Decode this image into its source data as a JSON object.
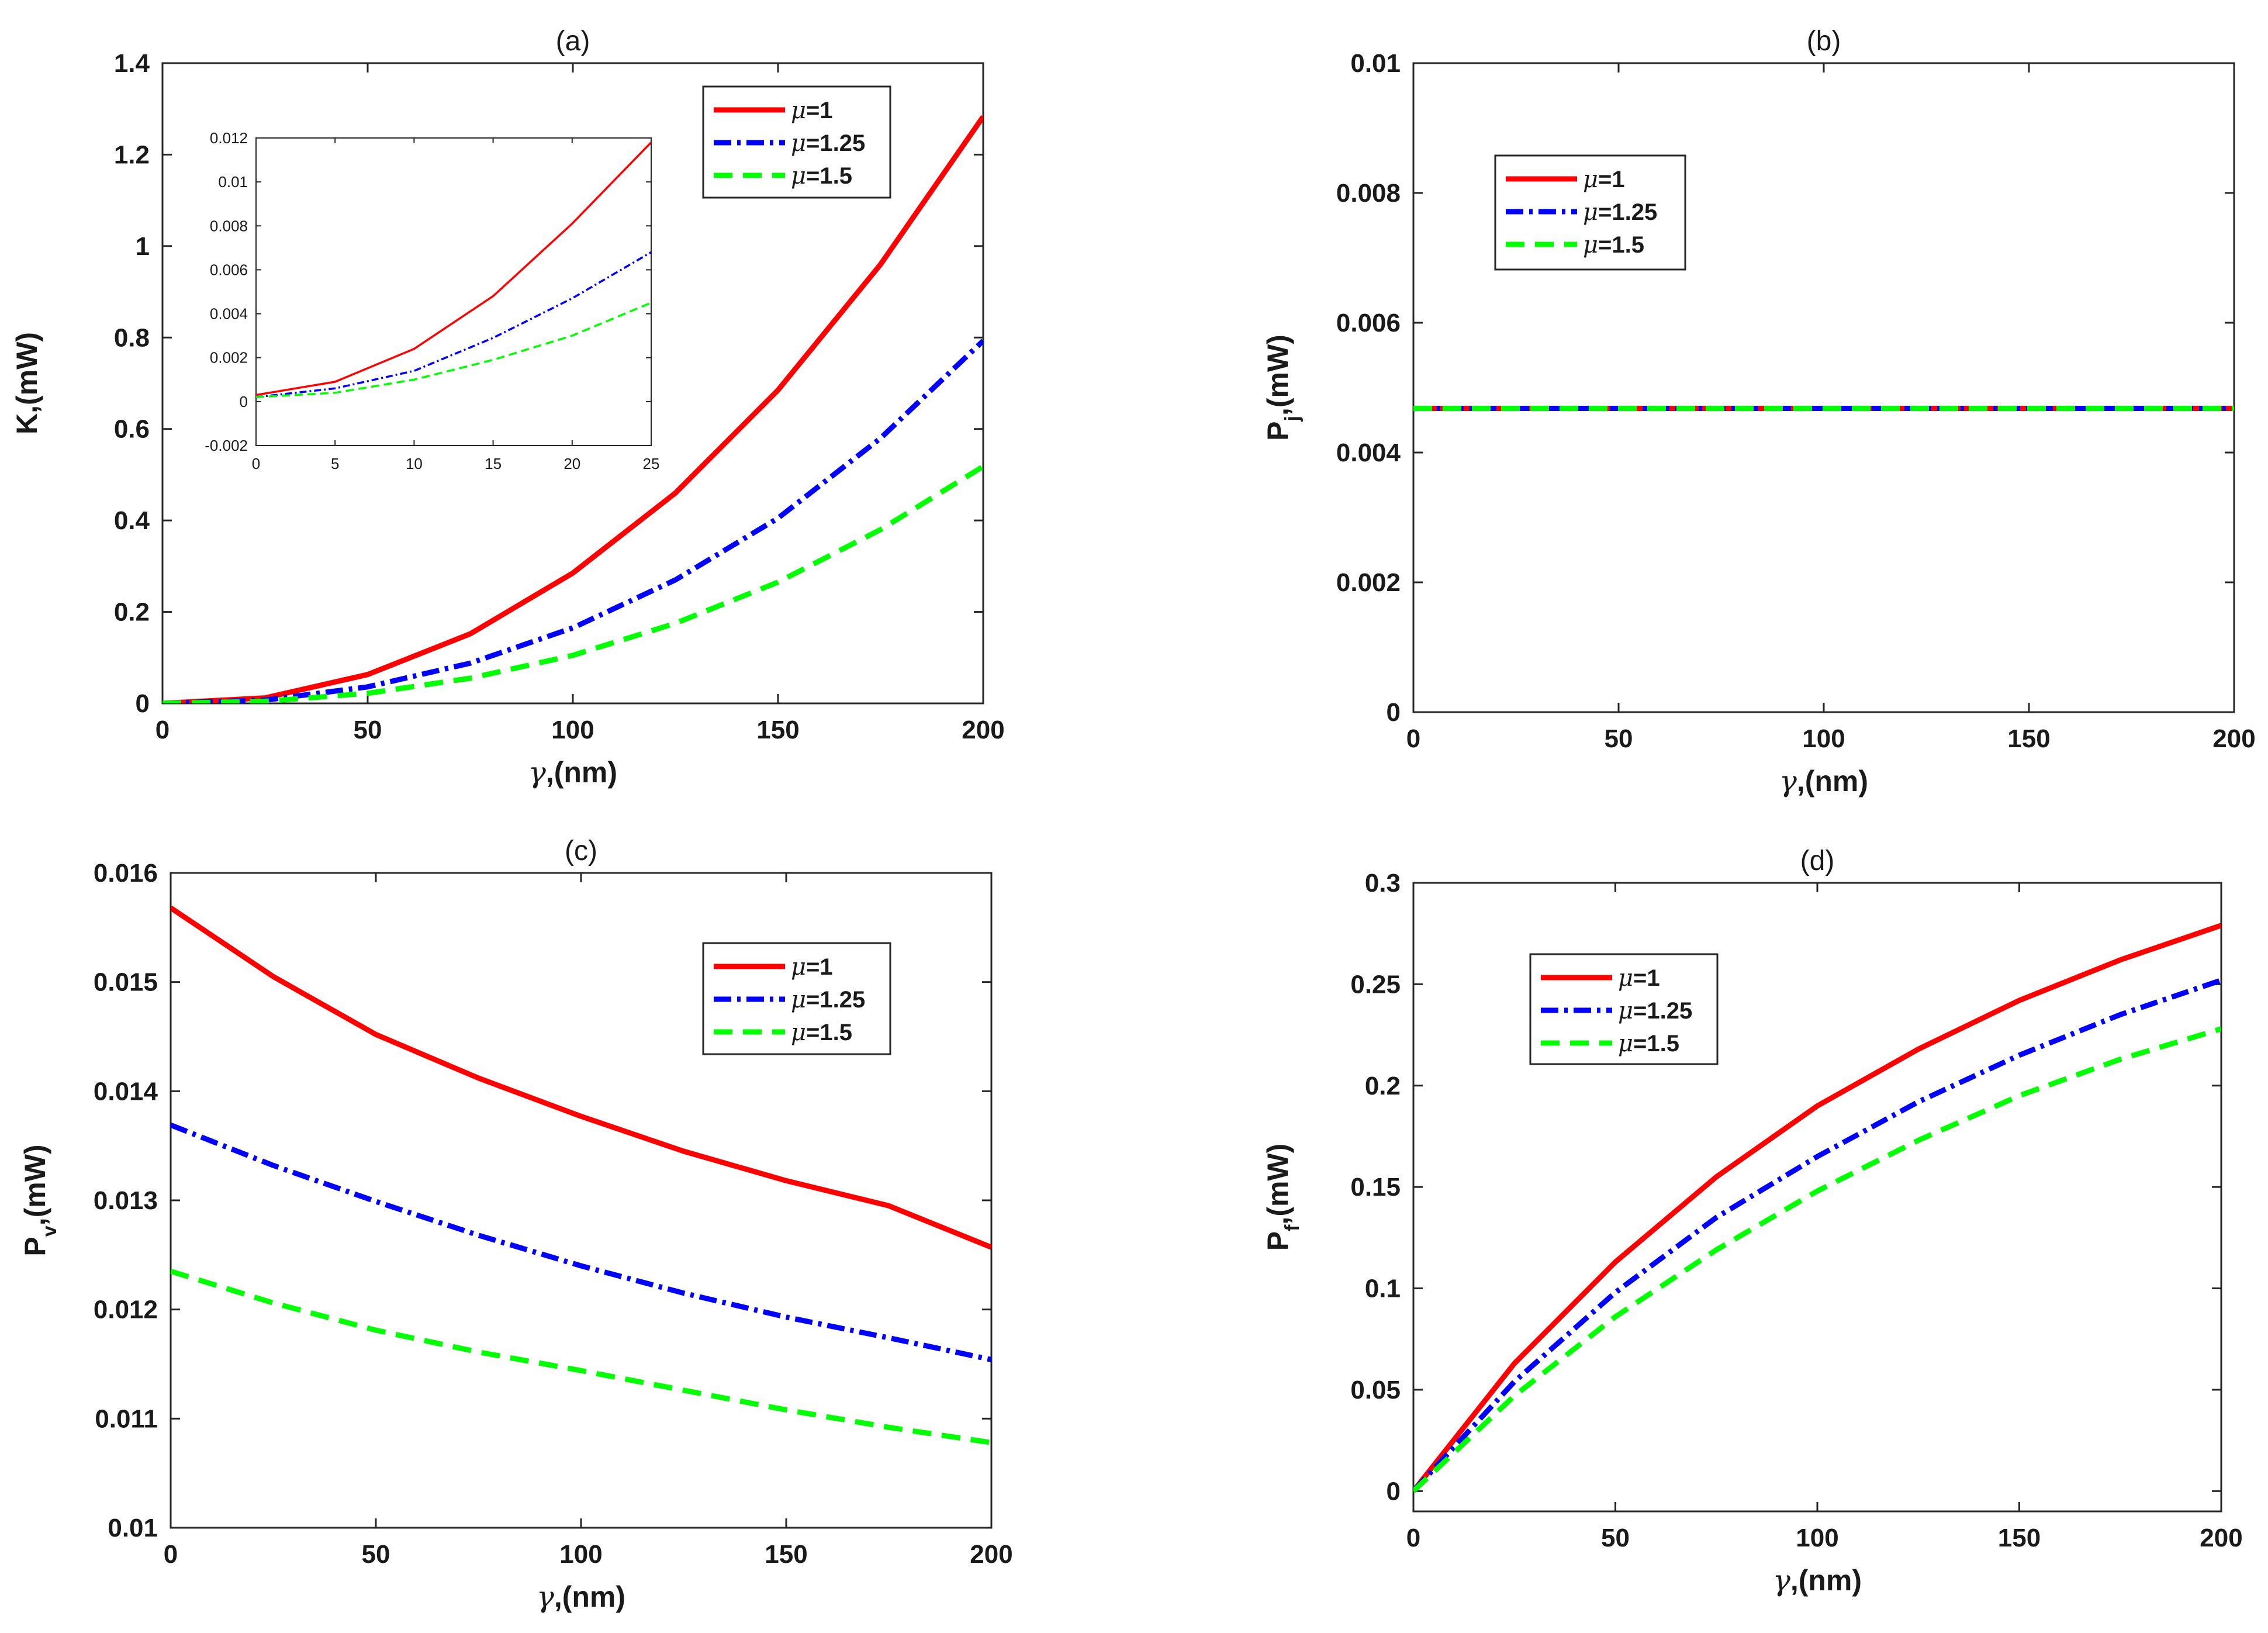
{
  "chart_data": [
    {
      "id": "a",
      "type": "line",
      "title": "(a)",
      "xlabel_symbol": "γ",
      "xlabel_unit": ",(nm)",
      "ylabel": "K,(mW)",
      "ylabel_main": "K,(mW)",
      "ylabel_sub": "",
      "ylabel_tail": "",
      "xlim": [
        0,
        200
      ],
      "ylim": [
        0,
        1.4
      ],
      "xticks": [
        0,
        50,
        100,
        150,
        200
      ],
      "yticks": [
        0,
        0.2,
        0.4,
        0.6,
        0.8,
        1,
        1.2,
        1.4
      ],
      "ytick_labels": [
        "0",
        "0.2",
        "0.4",
        "0.6",
        "0.8",
        "1",
        "1.2",
        "1.4"
      ],
      "x": [
        0,
        25,
        50,
        75,
        100,
        125,
        150,
        175,
        200
      ],
      "series": [
        {
          "name": "μ=1",
          "label_sym": "μ",
          "label_val": "=1",
          "color": "#ff0000",
          "dash": "solid",
          "values": [
            0,
            0.012,
            0.063,
            0.152,
            0.285,
            0.46,
            0.685,
            0.96,
            1.283
          ]
        },
        {
          "name": "μ=1.25",
          "label_sym": "μ",
          "label_val": "=1.25",
          "color": "#0000ff",
          "dash": "dashdot",
          "values": [
            0,
            0.007,
            0.036,
            0.088,
            0.165,
            0.27,
            0.405,
            0.58,
            0.793
          ]
        },
        {
          "name": "μ=1.5",
          "label_sym": "μ",
          "label_val": "=1.5",
          "color": "#00ff00",
          "dash": "dashed",
          "values": [
            0,
            0.0045,
            0.022,
            0.055,
            0.105,
            0.175,
            0.265,
            0.38,
            0.518
          ]
        }
      ],
      "legend_position": "top-right",
      "inset": {
        "xlim": [
          0,
          25
        ],
        "ylim": [
          -0.002,
          0.012
        ],
        "xticks": [
          0,
          5,
          10,
          15,
          20,
          25
        ],
        "yticks": [
          -0.002,
          0,
          0.002,
          0.004,
          0.006,
          0.008,
          0.01,
          0.012
        ],
        "ytick_labels": [
          "-0.002",
          "0",
          "0.002",
          "0.004",
          "0.006",
          "0.008",
          "0.01",
          "0.012"
        ],
        "x": [
          0,
          5,
          10,
          15,
          20,
          25
        ],
        "series": [
          {
            "name": "μ=1",
            "color": "#ff0000",
            "dash": "solid",
            "values": [
              0.0003,
              0.0009,
              0.0024,
              0.0048,
              0.0081,
              0.0118
            ]
          },
          {
            "name": "μ=1.25",
            "color": "#0000ff",
            "dash": "dashdot",
            "values": [
              0.0002,
              0.0006,
              0.0014,
              0.0029,
              0.0047,
              0.0068
            ]
          },
          {
            "name": "μ=1.5",
            "color": "#00ff00",
            "dash": "dashed",
            "values": [
              0.0002,
              0.0004,
              0.001,
              0.0019,
              0.003,
              0.0045
            ]
          }
        ]
      }
    },
    {
      "id": "b",
      "type": "line",
      "title": "(b)",
      "xlabel_symbol": "γ",
      "xlabel_unit": ",(nm)",
      "ylabel": "Pj,(mW)",
      "ylabel_main": "P",
      "ylabel_sub": "j",
      "ylabel_tail": ",(mW)",
      "xlim": [
        0,
        200
      ],
      "ylim": [
        0,
        0.01
      ],
      "xticks": [
        0,
        50,
        100,
        150,
        200
      ],
      "yticks": [
        0,
        0.002,
        0.004,
        0.006,
        0.008,
        0.01
      ],
      "ytick_labels": [
        "0",
        "0.002",
        "0.004",
        "0.006",
        "0.008",
        "0.01"
      ],
      "x": [
        0,
        200
      ],
      "series": [
        {
          "name": "μ=1",
          "label_sym": "μ",
          "label_val": "=1",
          "color": "#ff0000",
          "dash": "solid",
          "values": [
            0.00468,
            0.00468
          ]
        },
        {
          "name": "μ=1.25",
          "label_sym": "μ",
          "label_val": "=1.25",
          "color": "#0000ff",
          "dash": "dashdot",
          "values": [
            0.00468,
            0.00468
          ]
        },
        {
          "name": "μ=1.5",
          "label_sym": "μ",
          "label_val": "=1.5",
          "color": "#00ff00",
          "dash": "dashed",
          "values": [
            0.00468,
            0.00468
          ]
        }
      ],
      "legend_position": "top-left"
    },
    {
      "id": "c",
      "type": "line",
      "title": "(c)",
      "xlabel_symbol": "γ",
      "xlabel_unit": ",(nm)",
      "ylabel": "Pv,(mW)",
      "ylabel_main": "P",
      "ylabel_sub": "v",
      "ylabel_tail": ",(mW)",
      "xlim": [
        0,
        200
      ],
      "ylim": [
        0.01,
        0.016
      ],
      "xticks": [
        0,
        50,
        100,
        150,
        200
      ],
      "yticks": [
        0.01,
        0.011,
        0.012,
        0.013,
        0.014,
        0.015,
        0.016
      ],
      "ytick_labels": [
        "0.01",
        "0.011",
        "0.012",
        "0.013",
        "0.014",
        "0.015",
        "0.016"
      ],
      "x": [
        0,
        25,
        50,
        75,
        100,
        125,
        150,
        175,
        200
      ],
      "series": [
        {
          "name": "μ=1",
          "label_sym": "μ",
          "label_val": "=1",
          "color": "#ff0000",
          "dash": "solid",
          "values": [
            0.01568,
            0.01505,
            0.01452,
            0.01412,
            0.01377,
            0.01345,
            0.01318,
            0.01295,
            0.01257
          ]
        },
        {
          "name": "μ=1.25",
          "label_sym": "μ",
          "label_val": "=1.25",
          "color": "#0000ff",
          "dash": "dashdot",
          "values": [
            0.01369,
            0.01332,
            0.01299,
            0.01268,
            0.0124,
            0.01215,
            0.01193,
            0.01174,
            0.01154
          ]
        },
        {
          "name": "μ=1.5",
          "label_sym": "μ",
          "label_val": "=1.5",
          "color": "#00ff00",
          "dash": "dashed",
          "values": [
            0.01235,
            0.01206,
            0.01181,
            0.01161,
            0.01144,
            0.01126,
            0.01108,
            0.01092,
            0.01078
          ]
        }
      ],
      "legend_position": "top-right"
    },
    {
      "id": "d",
      "type": "line",
      "title": "(d)",
      "xlabel_symbol": "γ",
      "xlabel_unit": ",(nm)",
      "ylabel": "Pf,(mW)",
      "ylabel_main": "P",
      "ylabel_sub": "f",
      "ylabel_tail": ",(mW)",
      "xlim": [
        0,
        200
      ],
      "ylim": [
        -0.01,
        0.3
      ],
      "xticks": [
        0,
        50,
        100,
        150,
        200
      ],
      "yticks": [
        0,
        0.05,
        0.1,
        0.15,
        0.2,
        0.25,
        0.3
      ],
      "ytick_labels": [
        "0",
        "0.05",
        "0.1",
        "0.15",
        "0.2",
        "0.25",
        "0.3"
      ],
      "x": [
        0,
        25,
        50,
        75,
        100,
        125,
        150,
        175,
        200
      ],
      "series": [
        {
          "name": "μ=1",
          "label_sym": "μ",
          "label_val": "=1",
          "color": "#ff0000",
          "dash": "solid",
          "values": [
            0,
            0.063,
            0.113,
            0.155,
            0.19,
            0.218,
            0.242,
            0.262,
            0.279
          ]
        },
        {
          "name": "μ=1.25",
          "label_sym": "μ",
          "label_val": "=1.25",
          "color": "#0000ff",
          "dash": "dashdot",
          "values": [
            0,
            0.054,
            0.098,
            0.135,
            0.165,
            0.192,
            0.215,
            0.235,
            0.252
          ]
        },
        {
          "name": "μ=1.5",
          "label_sym": "μ",
          "label_val": "=1.5",
          "color": "#00ff00",
          "dash": "dashed",
          "values": [
            0,
            0.047,
            0.086,
            0.119,
            0.148,
            0.173,
            0.195,
            0.213,
            0.228
          ]
        }
      ],
      "legend_position": "top-left"
    }
  ]
}
